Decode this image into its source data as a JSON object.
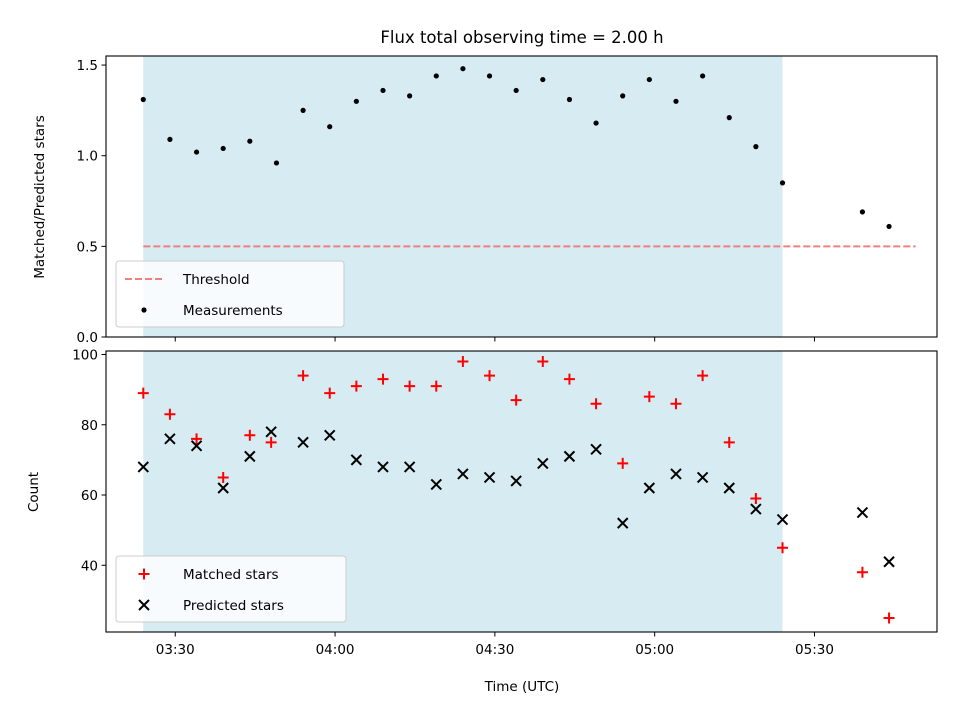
{
  "figure": {
    "title": "Flux total observing time = 2.00 h",
    "xlabel": "Time (UTC)",
    "x_tick_labels": [
      "03:30",
      "04:00",
      "04:30",
      "05:00",
      "05:30"
    ],
    "x_ticks_minutes": [
      210,
      240,
      270,
      300,
      330
    ]
  },
  "chart_data": [
    {
      "type": "scatter",
      "panel": "top",
      "ylabel": "Matched/Predicted stars",
      "xlim_minutes": [
        197,
        353
      ],
      "ylim": [
        0,
        1.55
      ],
      "y_ticks": [
        0.0,
        0.5,
        1.0,
        1.5
      ],
      "y_tick_labels": [
        "0.0",
        "0.5",
        "1.0",
        "1.5"
      ],
      "shaded_span_minutes": [
        204,
        324
      ],
      "shade_color": "#add8e6",
      "legend_position": "lower-left",
      "threshold": {
        "name": "Threshold",
        "y": 0.5,
        "x_range_minutes": [
          204,
          349
        ],
        "color": "#f08080",
        "style": "dashed"
      },
      "series": [
        {
          "name": "Measurements",
          "color": "#000000",
          "marker": "dot",
          "x_minutes": [
            204,
            209,
            214,
            219,
            224,
            229,
            234,
            239,
            244,
            249,
            254,
            259,
            264,
            269,
            274,
            279,
            284,
            289,
            294,
            299,
            304,
            309,
            314,
            319,
            324,
            339,
            344
          ],
          "y": [
            1.31,
            1.09,
            1.02,
            1.04,
            1.08,
            0.96,
            1.25,
            1.16,
            1.3,
            1.36,
            1.33,
            1.44,
            1.48,
            1.44,
            1.36,
            1.42,
            1.31,
            1.18,
            1.33,
            1.42,
            1.3,
            1.44,
            1.21,
            1.05,
            0.85,
            0.69,
            0.61
          ]
        }
      ]
    },
    {
      "type": "scatter",
      "panel": "bottom",
      "ylabel": "Count",
      "xlim_minutes": [
        197,
        353
      ],
      "ylim": [
        21,
        101
      ],
      "y_ticks": [
        40,
        60,
        80,
        100
      ],
      "y_tick_labels": [
        "40",
        "60",
        "80",
        "100"
      ],
      "shaded_span_minutes": [
        204,
        324
      ],
      "shade_color": "#add8e6",
      "legend_position": "lower-left",
      "series": [
        {
          "name": "Matched stars",
          "color": "#ff0000",
          "marker": "plus",
          "x_minutes": [
            204,
            209,
            214,
            219,
            224,
            228,
            234,
            239,
            244,
            249,
            254,
            259,
            264,
            269,
            274,
            279,
            284,
            289,
            294,
            299,
            304,
            309,
            314,
            319,
            324,
            339,
            344
          ],
          "y": [
            89,
            83,
            76,
            65,
            77,
            75,
            94,
            89,
            91,
            93,
            91,
            91,
            98,
            94,
            87,
            98,
            93,
            86,
            69,
            88,
            86,
            94,
            75,
            59,
            45,
            38,
            25
          ]
        },
        {
          "name": "Predicted stars",
          "color": "#000000",
          "marker": "x",
          "x_minutes": [
            204,
            209,
            214,
            219,
            224,
            228,
            234,
            239,
            244,
            249,
            254,
            259,
            264,
            269,
            274,
            279,
            284,
            289,
            294,
            299,
            304,
            309,
            314,
            319,
            324,
            339,
            344
          ],
          "y": [
            68,
            76,
            74,
            62,
            71,
            78,
            75,
            77,
            70,
            68,
            68,
            63,
            66,
            65,
            64,
            69,
            71,
            73,
            52,
            62,
            66,
            65,
            62,
            56,
            53,
            55,
            41
          ]
        }
      ]
    }
  ]
}
